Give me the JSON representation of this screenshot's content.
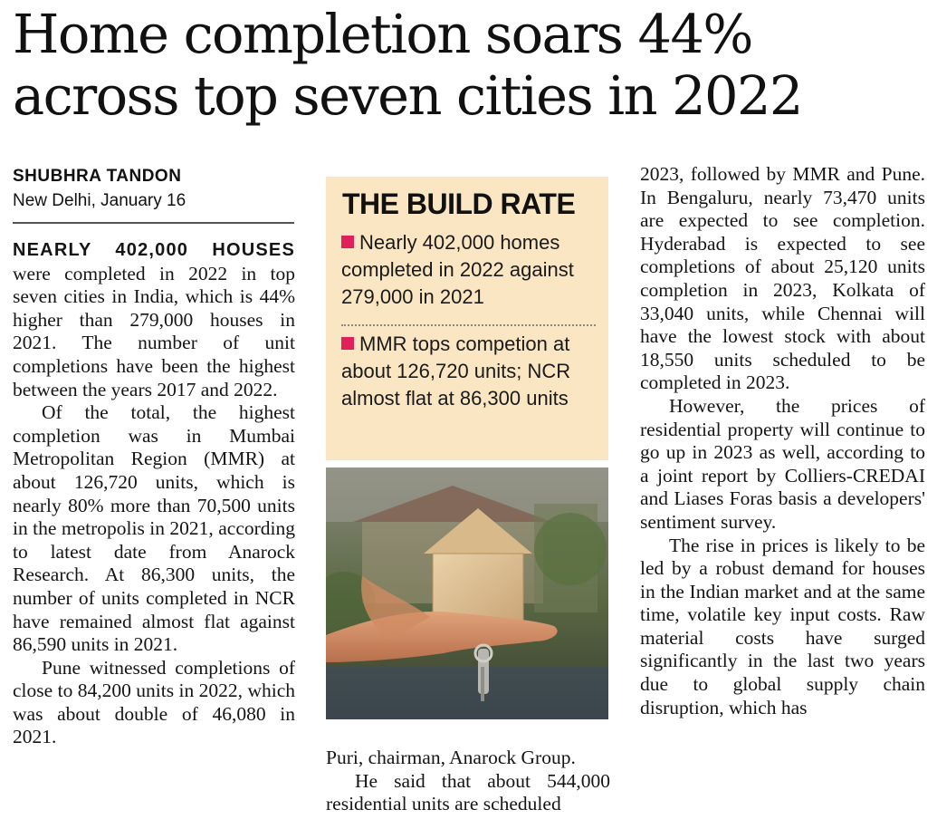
{
  "article": {
    "headline_line1": "Home completion soars 44%",
    "headline_line2": "across top seven cities in 2022",
    "author": "SHUBHRA TANDON",
    "dateline": "New Delhi, January 16"
  },
  "column1": {
    "lede": "NEARLY 402,000 HOUSES",
    "p1": "were completed in 2022 in top seven cities in India, which is 44% higher than 279,000 houses in 2021. The number of unit completions have been the highest between the years 2017 and 2022.",
    "p2": "Of the total, the highest completion was in Mumbai Metropolitan Region (MMR) at about 126,720 units, which is nearly 80% more than 70,500 units in the metropolis in 2021, according to latest date from Anarock Research. At 86,300 units, the number of units completed in NCR have remained almost flat against 86,590 units in 2021.",
    "p3": "Pune witnessed completions of close to 84,200 units in 2022, which was about double of 46,080 in 2021."
  },
  "sidebar": {
    "title": "THE BUILD RATE",
    "point1": "Nearly 402,000 homes completed in 2022 against 279,000 in 2021",
    "point2": "MMR tops competion at about 126,720 units; NCR almost flat at 86,300 units",
    "accent_color": "#e0205a",
    "background_color": "#fbe6c4"
  },
  "photo": {
    "description_icon": "house-in-hand-with-keys-photo"
  },
  "column2": {
    "p1": "Puri, chairman, Anarock Group.",
    "p2": "He said that about 544,000 residential units are scheduled"
  },
  "column3": {
    "p1": "2023, followed by MMR and Pune. In Bengaluru, nearly 73,470 units are expected to see completion. Hyderabad is expected to see completions of about 25,120 units completion in 2023, Kolkata of 33,040 units, while Chennai will have the lowest stock with about 18,550 units scheduled to be completed in 2023.",
    "p2": "However, the prices of residential property will continue to go up in 2023 as well, according to a joint report by Colliers-CREDAI and Liases Foras basis a developers' sentiment survey.",
    "p3": "The rise in prices is likely to be led by a robust demand for houses in the Indian market and at the same time, volatile key input costs. Raw material costs have surged significantly in the last two years due to global supply chain disruption, which has"
  }
}
